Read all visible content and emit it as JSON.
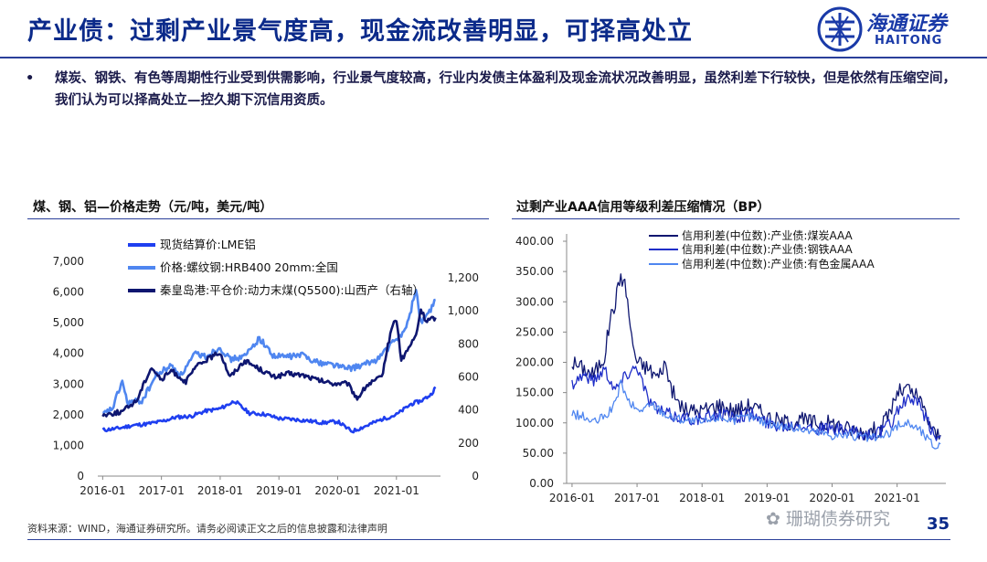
{
  "header": {
    "title": "产业债：过剩产业景气度高，现金流改善明显，可择高处立",
    "logo_cn": "海通证券",
    "logo_en": "HAITONG"
  },
  "bullet": {
    "marker": "•",
    "text": "煤炭、钢铁、有色等周期性行业受到供需影响，行业景气度较高，行业内发债主体盈利及现金流状况改善明显，虽然利差下行较快，但是依然有压缩空间，我们认为可以择高处立—控久期下沉信用资质。"
  },
  "footer": {
    "source": "资料来源：WIND，海通证券研究所。请务必阅读正文之后的信息披露和法律声明",
    "watermark": "珊瑚债券研究",
    "page_number": "35"
  },
  "colors": {
    "title_blue": "#0b2a8a",
    "lme_al": "#1f3ff0",
    "rebar": "#4f86f0",
    "coal_price": "#0e1670",
    "coal_spread": "#0e1670",
    "steel_spread": "#1f2ec8",
    "metal_spread": "#4f86f0"
  },
  "chart_data": [
    {
      "type": "line",
      "title": "煤、钢、铝—价格走势（元/吨，美元/吨）",
      "x_ticks": [
        "2016-01",
        "2017-01",
        "2018-01",
        "2019-01",
        "2020-01",
        "2021-01"
      ],
      "xlim": [
        "2015-12",
        "2021-10"
      ],
      "left_axis": {
        "ylim": [
          0,
          7000
        ],
        "ticks": [
          "0",
          "1,000",
          "2,000",
          "3,000",
          "4,000",
          "5,000",
          "6,000",
          "7,000"
        ]
      },
      "right_axis": {
        "ylim": [
          0,
          1300
        ],
        "ticks": [
          "0",
          "200",
          "400",
          "600",
          "800",
          "1,000",
          "1,200"
        ]
      },
      "legend_position": "top-left",
      "series": [
        {
          "name": "现货结算价:LME铝",
          "axis": "left",
          "color": "#1f3ff0",
          "points": [
            [
              "2016-01",
              1500
            ],
            [
              "2016-04",
              1550
            ],
            [
              "2016-07",
              1650
            ],
            [
              "2016-10",
              1700
            ],
            [
              "2017-01",
              1780
            ],
            [
              "2017-04",
              1920
            ],
            [
              "2017-07",
              1950
            ],
            [
              "2017-10",
              2120
            ],
            [
              "2018-01",
              2200
            ],
            [
              "2018-04",
              2450
            ],
            [
              "2018-05",
              2300
            ],
            [
              "2018-07",
              2050
            ],
            [
              "2018-10",
              2020
            ],
            [
              "2019-01",
              1880
            ],
            [
              "2019-04",
              1850
            ],
            [
              "2019-07",
              1800
            ],
            [
              "2019-10",
              1740
            ],
            [
              "2020-01",
              1780
            ],
            [
              "2020-03",
              1550
            ],
            [
              "2020-04",
              1460
            ],
            [
              "2020-07",
              1650
            ],
            [
              "2020-10",
              1850
            ],
            [
              "2021-01",
              2000
            ],
            [
              "2021-04",
              2350
            ],
            [
              "2021-06",
              2450
            ],
            [
              "2021-08",
              2650
            ],
            [
              "2021-09",
              2900
            ]
          ]
        },
        {
          "name": "价格:螺纹钢:HRB400 20mm:全国",
          "axis": "left",
          "color": "#4f86f0",
          "points": [
            [
              "2016-01",
              2000
            ],
            [
              "2016-03",
              2200
            ],
            [
              "2016-05",
              3100
            ],
            [
              "2016-06",
              2400
            ],
            [
              "2016-09",
              2450
            ],
            [
              "2016-12",
              3300
            ],
            [
              "2017-03",
              3600
            ],
            [
              "2017-05",
              3300
            ],
            [
              "2017-08",
              4000
            ],
            [
              "2017-10",
              3900
            ],
            [
              "2018-01",
              4200
            ],
            [
              "2018-03",
              3800
            ],
            [
              "2018-06",
              3900
            ],
            [
              "2018-09",
              4500
            ],
            [
              "2018-12",
              3900
            ],
            [
              "2019-03",
              3900
            ],
            [
              "2019-06",
              3950
            ],
            [
              "2019-09",
              3700
            ],
            [
              "2019-12",
              3650
            ],
            [
              "2020-03",
              3500
            ],
            [
              "2020-06",
              3600
            ],
            [
              "2020-09",
              3800
            ],
            [
              "2020-12",
              4300
            ],
            [
              "2021-03",
              4800
            ],
            [
              "2021-05",
              6100
            ],
            [
              "2021-06",
              5000
            ],
            [
              "2021-08",
              5400
            ],
            [
              "2021-09",
              5750
            ]
          ]
        },
        {
          "name": "秦皇岛港:平仓价:动力末煤(Q5500):山西产（右轴）",
          "axis": "right",
          "color": "#0e1670",
          "points": [
            [
              "2016-01",
              370
            ],
            [
              "2016-05",
              390
            ],
            [
              "2016-08",
              460
            ],
            [
              "2016-10",
              600
            ],
            [
              "2016-11",
              660
            ],
            [
              "2017-01",
              580
            ],
            [
              "2017-03",
              640
            ],
            [
              "2017-06",
              570
            ],
            [
              "2017-08",
              660
            ],
            [
              "2017-10",
              700
            ],
            [
              "2018-01",
              750
            ],
            [
              "2018-03",
              600
            ],
            [
              "2018-06",
              700
            ],
            [
              "2018-09",
              650
            ],
            [
              "2018-12",
              600
            ],
            [
              "2019-03",
              620
            ],
            [
              "2019-06",
              610
            ],
            [
              "2019-09",
              580
            ],
            [
              "2019-12",
              560
            ],
            [
              "2020-03",
              560
            ],
            [
              "2020-05",
              470
            ],
            [
              "2020-07",
              550
            ],
            [
              "2020-10",
              600
            ],
            [
              "2020-12",
              900
            ],
            [
              "2021-01",
              950
            ],
            [
              "2021-02",
              700
            ],
            [
              "2021-05",
              850
            ],
            [
              "2021-06",
              1010
            ],
            [
              "2021-07",
              940
            ],
            [
              "2021-09",
              960
            ]
          ]
        }
      ]
    },
    {
      "type": "line",
      "title": "过剩产业AAA信用等级利差压缩情况（BP）",
      "x_ticks": [
        "2016-01",
        "2017-01",
        "2018-01",
        "2019-01",
        "2020-01",
        "2021-01"
      ],
      "xlim": [
        "2015-12",
        "2021-10"
      ],
      "ylim": [
        0,
        400
      ],
      "y_ticks": [
        "0.00",
        "50.00",
        "100.00",
        "150.00",
        "200.00",
        "250.00",
        "300.00",
        "350.00",
        "400.00"
      ],
      "legend_position": "top-center",
      "series": [
        {
          "name": "信用利差(中位数):产业债:煤炭AAA",
          "color": "#0e1670",
          "points": [
            [
              "2016-01",
              200
            ],
            [
              "2016-03",
              190
            ],
            [
              "2016-05",
              180
            ],
            [
              "2016-07",
              210
            ],
            [
              "2016-08",
              270
            ],
            [
              "2016-09",
              300
            ],
            [
              "2016-10",
              345
            ],
            [
              "2016-11",
              320
            ],
            [
              "2016-12",
              240
            ],
            [
              "2017-01",
              200
            ],
            [
              "2017-03",
              190
            ],
            [
              "2017-05",
              175
            ],
            [
              "2017-06",
              200
            ],
            [
              "2017-08",
              140
            ],
            [
              "2017-10",
              120
            ],
            [
              "2018-01",
              120
            ],
            [
              "2018-04",
              130
            ],
            [
              "2018-07",
              120
            ],
            [
              "2018-10",
              130
            ],
            [
              "2019-01",
              110
            ],
            [
              "2019-04",
              100
            ],
            [
              "2019-07",
              105
            ],
            [
              "2019-10",
              100
            ],
            [
              "2020-01",
              100
            ],
            [
              "2020-04",
              90
            ],
            [
              "2020-07",
              85
            ],
            [
              "2020-10",
              90
            ],
            [
              "2020-12",
              125
            ],
            [
              "2021-01",
              150
            ],
            [
              "2021-03",
              155
            ],
            [
              "2021-05",
              140
            ],
            [
              "2021-07",
              100
            ],
            [
              "2021-08",
              80
            ],
            [
              "2021-09",
              80
            ]
          ]
        },
        {
          "name": "信用利差(中位数):产业债:钢铁AAA",
          "color": "#1f2ec8",
          "points": [
            [
              "2016-01",
              165
            ],
            [
              "2016-03",
              180
            ],
            [
              "2016-05",
              170
            ],
            [
              "2016-07",
              190
            ],
            [
              "2016-09",
              155
            ],
            [
              "2016-11",
              180
            ],
            [
              "2017-01",
              195
            ],
            [
              "2017-03",
              140
            ],
            [
              "2017-05",
              120
            ],
            [
              "2017-08",
              110
            ],
            [
              "2018-01",
              105
            ],
            [
              "2018-04",
              115
            ],
            [
              "2018-07",
              110
            ],
            [
              "2018-10",
              115
            ],
            [
              "2019-01",
              100
            ],
            [
              "2019-04",
              95
            ],
            [
              "2019-07",
              100
            ],
            [
              "2019-10",
              90
            ],
            [
              "2020-01",
              90
            ],
            [
              "2020-04",
              85
            ],
            [
              "2020-07",
              80
            ],
            [
              "2020-10",
              85
            ],
            [
              "2020-12",
              100
            ],
            [
              "2021-01",
              120
            ],
            [
              "2021-03",
              140
            ],
            [
              "2021-05",
              130
            ],
            [
              "2021-07",
              95
            ],
            [
              "2021-08",
              75
            ],
            [
              "2021-09",
              78
            ]
          ]
        },
        {
          "name": "信用利差(中位数):产业债:有色金属AAA",
          "color": "#4f86f0",
          "points": [
            [
              "2016-01",
              115
            ],
            [
              "2016-03",
              110
            ],
            [
              "2016-05",
              100
            ],
            [
              "2016-07",
              110
            ],
            [
              "2016-09",
              130
            ],
            [
              "2016-10",
              170
            ],
            [
              "2016-11",
              140
            ],
            [
              "2017-01",
              120
            ],
            [
              "2017-04",
              130
            ],
            [
              "2017-07",
              110
            ],
            [
              "2018-01",
              100
            ],
            [
              "2018-04",
              110
            ],
            [
              "2018-07",
              105
            ],
            [
              "2018-10",
              110
            ],
            [
              "2019-01",
              100
            ],
            [
              "2019-04",
              95
            ],
            [
              "2019-07",
              90
            ],
            [
              "2019-10",
              85
            ],
            [
              "2020-01",
              80
            ],
            [
              "2020-04",
              80
            ],
            [
              "2020-07",
              75
            ],
            [
              "2020-10",
              75
            ],
            [
              "2020-12",
              85
            ],
            [
              "2021-01",
              95
            ],
            [
              "2021-03",
              100
            ],
            [
              "2021-05",
              90
            ],
            [
              "2021-07",
              70
            ],
            [
              "2021-08",
              60
            ],
            [
              "2021-09",
              65
            ]
          ]
        }
      ]
    }
  ]
}
